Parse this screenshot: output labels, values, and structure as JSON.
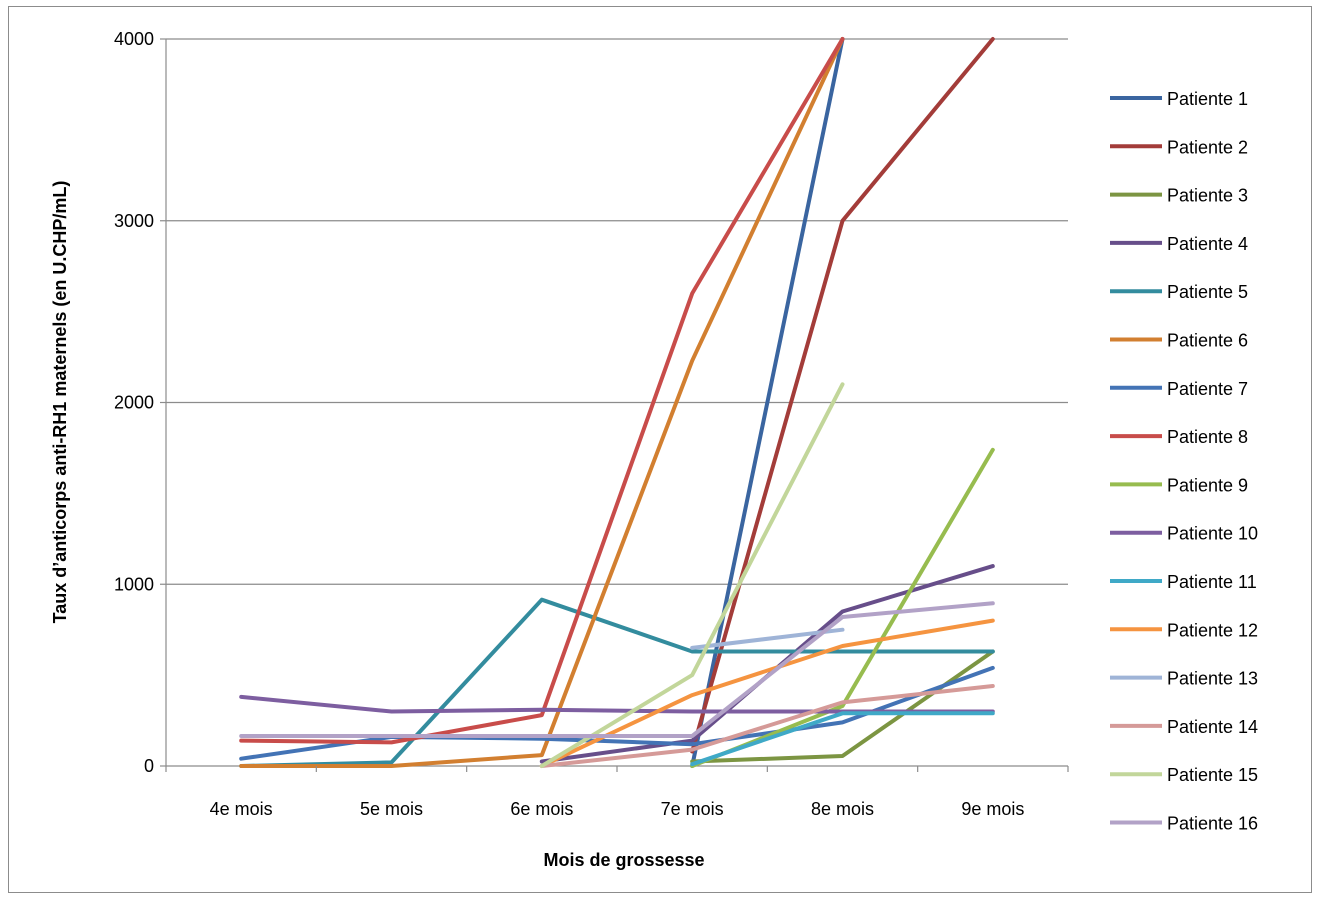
{
  "chart_data": {
    "type": "line",
    "title": "",
    "xlabel": "Mois de grossesse",
    "ylabel": "Taux d’anticorps anti-RH1 maternels (en U.CHP/mL)",
    "ylim": [
      0,
      4000
    ],
    "yticks": [
      "0",
      "1000",
      "2000",
      "3000",
      "4000"
    ],
    "categories": [
      "4e mois",
      "5e mois",
      "6e mois",
      "7e mois",
      "8e mois",
      "9e mois"
    ],
    "grid": true,
    "legend_position": "right",
    "series": [
      {
        "name": "Patiente 1",
        "color": "#3a65a0",
        "values": [
          null,
          null,
          null,
          0,
          4000,
          null
        ]
      },
      {
        "name": "Patiente 2",
        "color": "#a33c39",
        "values": [
          null,
          null,
          null,
          80,
          3000,
          4000
        ]
      },
      {
        "name": "Patiente 3",
        "color": "#7c9542",
        "values": [
          null,
          null,
          null,
          25,
          55,
          630
        ]
      },
      {
        "name": "Patiente 4",
        "color": "#674e8a",
        "values": [
          null,
          null,
          25,
          140,
          850,
          1100
        ]
      },
      {
        "name": "Patiente 5",
        "color": "#338c9e",
        "values": [
          0,
          20,
          915,
          630,
          630,
          630
        ]
      },
      {
        "name": "Patiente 6",
        "color": "#d27f30",
        "values": [
          0,
          0,
          60,
          2230,
          4000,
          null
        ]
      },
      {
        "name": "Patiente 7",
        "color": "#4373b5",
        "values": [
          40,
          160,
          150,
          120,
          240,
          540
        ]
      },
      {
        "name": "Patiente 8",
        "color": "#c84c4a",
        "values": [
          140,
          130,
          280,
          2600,
          4000,
          null
        ]
      },
      {
        "name": "Patiente 9",
        "color": "#97bc4f",
        "values": [
          null,
          null,
          null,
          0,
          330,
          1740
        ]
      },
      {
        "name": "Patiente 10",
        "color": "#7d5ea0",
        "values": [
          380,
          300,
          310,
          300,
          300,
          300
        ]
      },
      {
        "name": "Patiente 11",
        "color": "#3fa9c7",
        "values": [
          null,
          null,
          null,
          10,
          290,
          290
        ]
      },
      {
        "name": "Patiente 12",
        "color": "#f59440",
        "values": [
          null,
          null,
          0,
          390,
          660,
          800
        ]
      },
      {
        "name": "Patiente 13",
        "color": "#9fb4d7",
        "values": [
          null,
          null,
          null,
          650,
          750,
          null
        ]
      },
      {
        "name": "Patiente 14",
        "color": "#d59a98",
        "values": [
          null,
          null,
          0,
          90,
          350,
          440
        ]
      },
      {
        "name": "Patiente 15",
        "color": "#c2d69a",
        "values": [
          null,
          null,
          0,
          500,
          2100,
          null
        ]
      },
      {
        "name": "Patiente 16",
        "color": "#b2a2c7",
        "values": [
          165,
          165,
          165,
          165,
          820,
          895
        ]
      }
    ]
  }
}
